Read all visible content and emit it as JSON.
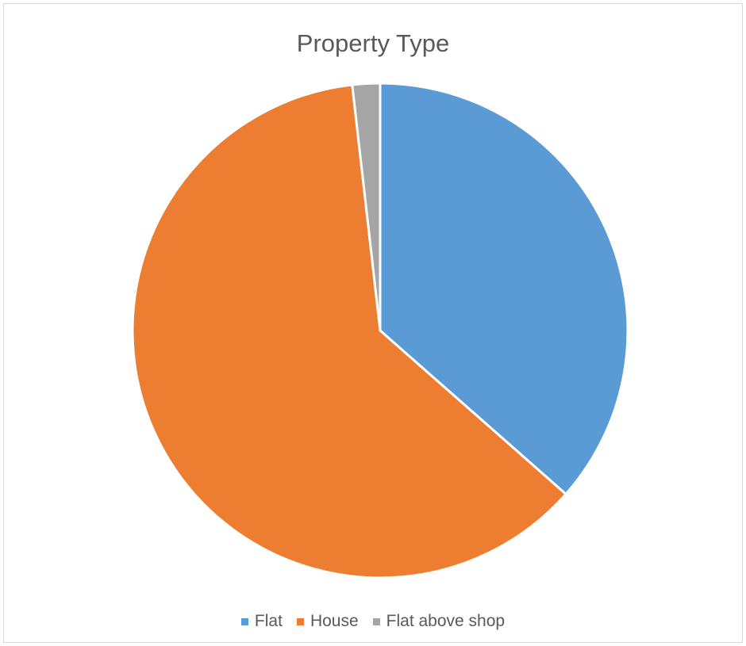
{
  "chart_data": {
    "type": "pie",
    "title": "Property Type",
    "categories": [
      "Flat",
      "House",
      "Flat above shop"
    ],
    "values": [
      36.5,
      61.7,
      1.8
    ],
    "colors": [
      "#5b9bd5",
      "#ed7d31",
      "#a5a5a5"
    ],
    "legend_position": "bottom",
    "start_angle": "top",
    "direction": "clockwise"
  }
}
